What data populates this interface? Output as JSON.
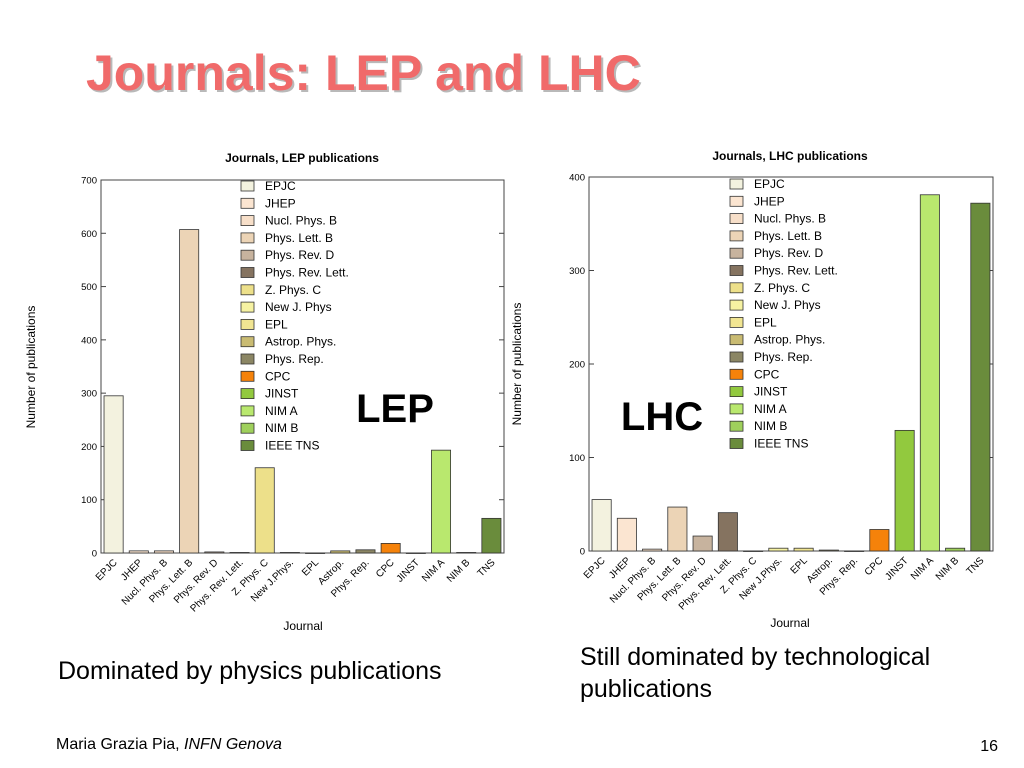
{
  "slide": {
    "title": "Journals: LEP and LHC",
    "caption_lep": "Dominated by physics publications",
    "caption_lhc": "Still dominated by technological publications",
    "footer_author": "Maria Grazia Pia, ",
    "footer_affiliation": "INFN Genova",
    "page_number": "16"
  },
  "chart_data": [
    {
      "type": "bar",
      "title": "Journals, LEP publications",
      "xlabel": "Journal",
      "ylabel": "Number of publications",
      "overlay_label": "LEP",
      "ylim": [
        0,
        700
      ],
      "yticks": [
        "0",
        "100",
        "200",
        "300",
        "400",
        "500",
        "600",
        "700"
      ],
      "categories": [
        "EPJC",
        "JHEP",
        "Nucl. Phys. B",
        "Phys. Lett. B",
        "Phys. Rev. D",
        "Phys. Rev. Lett.",
        "Z. Phys. C",
        "New J.Phys.",
        "EPL",
        "Astrop.",
        "Phys. Rep.",
        "CPC",
        "JINST",
        "NIM A",
        "NIM B",
        "TNS"
      ],
      "values": [
        295,
        4,
        4,
        607,
        2,
        1,
        160,
        1,
        0,
        4,
        6,
        18,
        0,
        193,
        1,
        65
      ],
      "legend": [
        "EPJC",
        "JHEP",
        "Nucl. Phys. B",
        "Phys. Lett. B",
        "Phys. Rev. D",
        "Phys. Rev. Lett.",
        "Z. Phys. C",
        "New J. Phys",
        "EPL",
        "Astrop. Phys.",
        "Phys. Rep.",
        "CPC",
        "JINST",
        "NIM A",
        "NIM B",
        "IEEE TNS"
      ],
      "colors": [
        "#f3f2df",
        "#fbe5d1",
        "#f7dfc9",
        "#ecd4b6",
        "#c7b39e",
        "#857360",
        "#ede08a",
        "#f6f2a2",
        "#f1e592",
        "#c9bb72",
        "#8b8664",
        "#f5820a",
        "#92c93e",
        "#b9e86e",
        "#9fd05c",
        "#6a8c3c"
      ],
      "legend_position": "top-center",
      "grid": false
    },
    {
      "type": "bar",
      "title": "Journals, LHC publications",
      "xlabel": "Journal",
      "ylabel": "Number of publications",
      "overlay_label": "LHC",
      "ylim": [
        0,
        400
      ],
      "yticks": [
        "0",
        "100",
        "200",
        "300",
        "400"
      ],
      "categories": [
        "EPJC",
        "JHEP",
        "Nucl. Phys. B",
        "Phys. Lett. B",
        "Phys. Rev. D",
        "Phys. Rev. Lett.",
        "Z. Phys. C",
        "New J.Phys.",
        "EPL",
        "Astrop.",
        "Phys. Rep.",
        "CPC",
        "JINST",
        "NIM A",
        "NIM B",
        "TNS"
      ],
      "values": [
        55,
        35,
        2,
        47,
        16,
        41,
        0,
        3,
        3,
        1,
        0,
        23,
        129,
        381,
        3,
        372
      ],
      "legend": [
        "EPJC",
        "JHEP",
        "Nucl. Phys. B",
        "Phys. Lett. B",
        "Phys. Rev. D",
        "Phys. Rev. Lett.",
        "Z. Phys. C",
        "New J. Phys",
        "EPL",
        "Astrop. Phys.",
        "Phys. Rep.",
        "CPC",
        "JINST",
        "NIM A",
        "NIM B",
        "IEEE TNS"
      ],
      "colors": [
        "#f3f2df",
        "#fbe5d1",
        "#f7dfc9",
        "#ecd4b6",
        "#c7b39e",
        "#857360",
        "#ede08a",
        "#f6f2a2",
        "#f1e592",
        "#c9bb72",
        "#8b8664",
        "#f5820a",
        "#92c93e",
        "#b9e86e",
        "#9fd05c",
        "#6a8c3c"
      ],
      "legend_position": "top-center",
      "grid": false
    }
  ]
}
